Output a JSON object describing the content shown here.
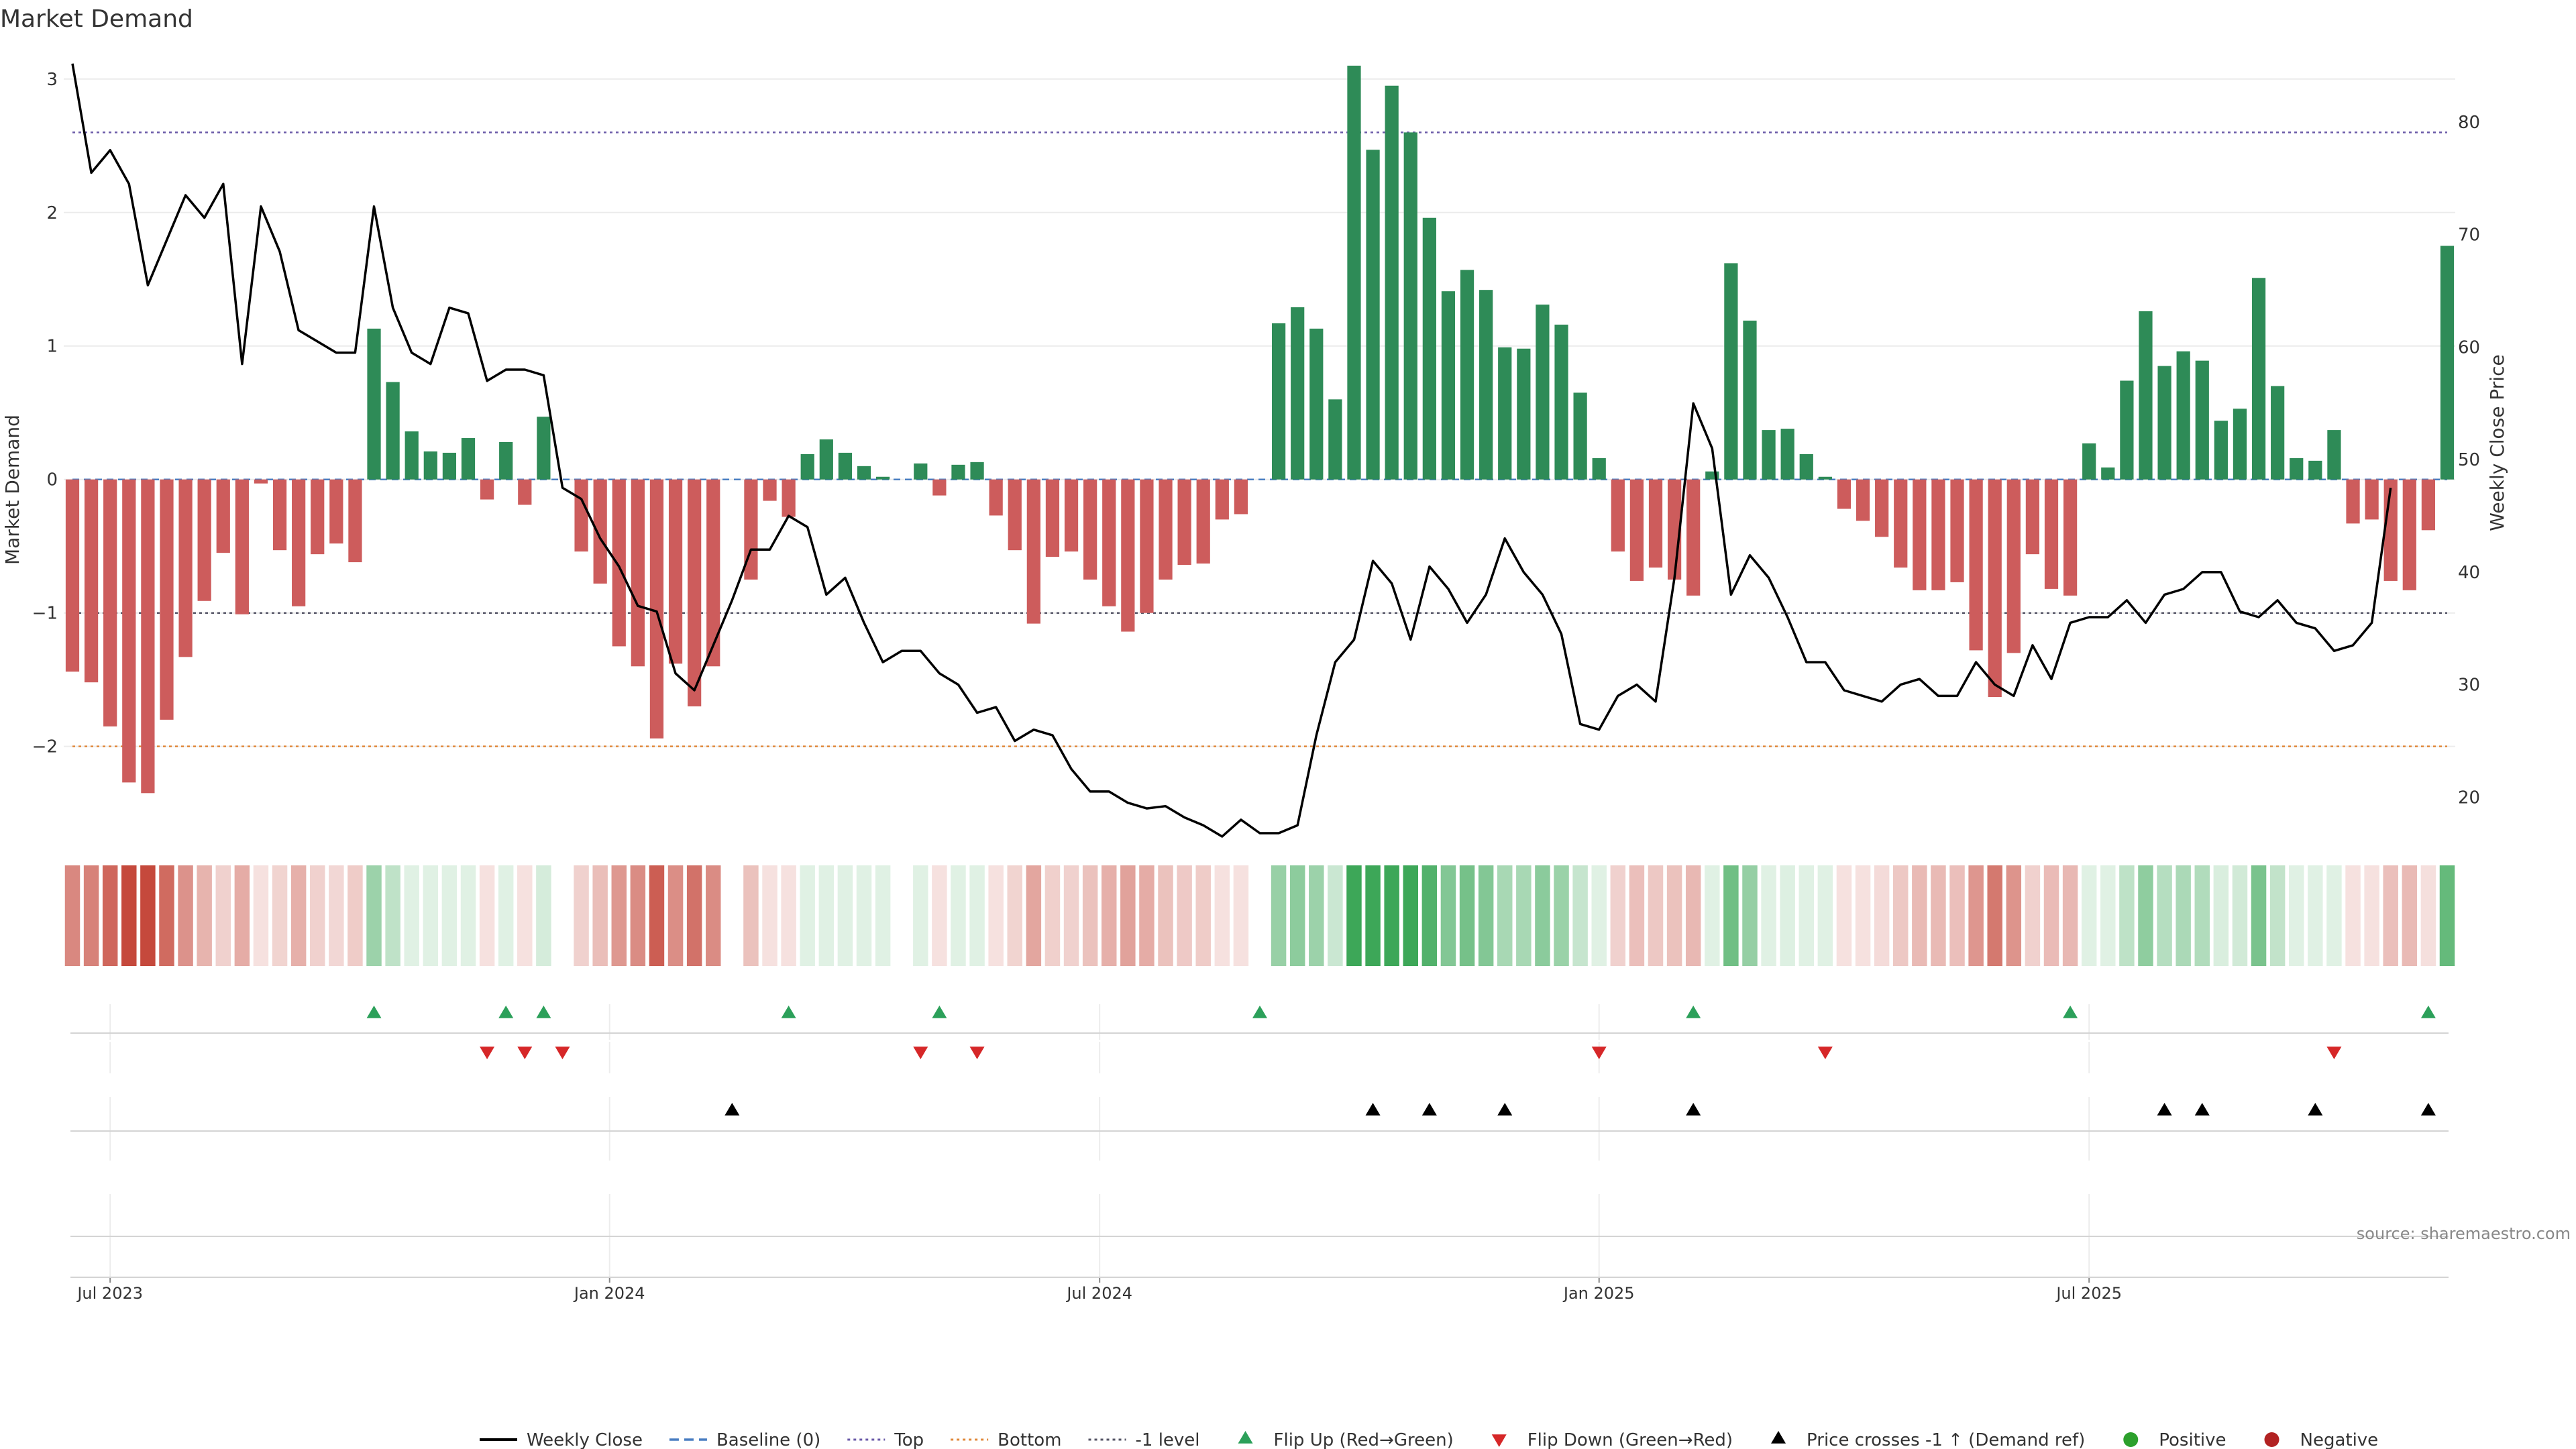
{
  "chart_data": {
    "type": "bar",
    "title": "Market Demand",
    "ylabel": "Market Demand",
    "y2label": "Weekly Close Price",
    "ylim": [
      -2.65,
      3.2
    ],
    "y2lim": [
      16.8,
      86.2
    ],
    "yticks": [
      3,
      2,
      1,
      0,
      -1,
      -2
    ],
    "y2ticks": [
      80,
      70,
      60,
      50,
      40,
      30,
      20
    ],
    "reference_lines": {
      "top": 2.6,
      "bottom": -2.0,
      "minus_one": -1.0,
      "baseline": 0
    },
    "x_ticks": [
      {
        "label": "Jul 2023",
        "week": 2
      },
      {
        "label": "Jan 2024",
        "week": 28.5
      },
      {
        "label": "Jul 2024",
        "week": 54.5
      },
      {
        "label": "Jan 2025",
        "week": 81
      },
      {
        "label": "Jul 2025",
        "week": 107
      }
    ],
    "demand": [
      -1.44,
      -1.52,
      -1.85,
      -2.27,
      -2.35,
      -1.8,
      -1.33,
      -0.91,
      -0.55,
      -1.01,
      -0.03,
      -0.53,
      -0.95,
      -0.56,
      -0.48,
      -0.62,
      1.13,
      0.73,
      0.36,
      0.21,
      0.2,
      0.31,
      -0.15,
      0.28,
      -0.19,
      0.47,
      0,
      -0.54,
      -0.78,
      -1.25,
      -1.4,
      -1.94,
      -1.38,
      -1.7,
      -1.4,
      0,
      -0.75,
      -0.16,
      -0.28,
      0.19,
      0.3,
      0.2,
      0.1,
      0.02,
      0,
      0.12,
      -0.12,
      0.11,
      0.13,
      -0.27,
      -0.53,
      -1.08,
      -0.58,
      -0.54,
      -0.75,
      -0.95,
      -1.14,
      -1.0,
      -0.75,
      -0.64,
      -0.63,
      -0.3,
      -0.26,
      0,
      1.17,
      1.29,
      1.13,
      0.6,
      3.1,
      2.47,
      2.95,
      2.6,
      1.96,
      1.41,
      1.57,
      1.42,
      0.99,
      0.98,
      1.31,
      1.16,
      0.65,
      0.16,
      -0.54,
      -0.76,
      -0.66,
      -0.75,
      -0.87,
      0.06,
      1.62,
      1.19,
      0.37,
      0.38,
      0.19,
      0.02,
      -0.22,
      -0.31,
      -0.43,
      -0.66,
      -0.83,
      -0.83,
      -0.77,
      -1.28,
      -1.63,
      -1.3,
      -0.56,
      -0.82,
      -0.87,
      0.27,
      0.09,
      0.74,
      1.26,
      0.85,
      0.96,
      0.89,
      0.44,
      0.53,
      1.51,
      0.7,
      0.16,
      0.14,
      0.37,
      -0.33,
      -0.3,
      -0.76,
      -0.83,
      -0.38,
      1.75
    ],
    "close": [
      85.2,
      75.5,
      77.5,
      74.5,
      65.5,
      69.5,
      73.5,
      71.5,
      74.5,
      58.5,
      72.5,
      68.5,
      61.5,
      60.5,
      59.5,
      59.5,
      72.5,
      63.5,
      59.5,
      58.5,
      63.5,
      63.0,
      57.0,
      58.0,
      58.0,
      57.5,
      47.5,
      46.5,
      43.0,
      40.5,
      37.0,
      36.5,
      31.0,
      29.5,
      33.5,
      37.5,
      42.0,
      42.0,
      45.0,
      44.0,
      38.0,
      39.5,
      35.5,
      32.0,
      33.0,
      33.0,
      31.0,
      30.0,
      27.5,
      28.0,
      25.0,
      26.0,
      25.5,
      22.5,
      20.5,
      20.5,
      19.5,
      19.0,
      19.2,
      18.2,
      17.5,
      16.5,
      18.0,
      16.8,
      16.8,
      17.5,
      25.5,
      32.0,
      34.0,
      41.0,
      39.0,
      34.0,
      40.5,
      38.5,
      35.5,
      38.0,
      43.0,
      40.0,
      38.0,
      34.5,
      26.5,
      26.0,
      29.0,
      30.0,
      28.5,
      39.5,
      55.0,
      51.0,
      38.0,
      41.5,
      39.5,
      36.0,
      32.0,
      32.0,
      29.5,
      29.0,
      28.5,
      30.0,
      30.5,
      29.0,
      29.0,
      32.0,
      30.0,
      29.0,
      33.5,
      30.5,
      35.5,
      36.0,
      36.0,
      37.5,
      35.5,
      38.0,
      38.5,
      40.0,
      40.0,
      36.5,
      36.0,
      37.5,
      35.5,
      35.0,
      33.0,
      33.5,
      35.5,
      47.5
    ],
    "flip_up_weeks": [
      16,
      23,
      25,
      38,
      46,
      63,
      86,
      106,
      125
    ],
    "flip_down_weeks": [
      22,
      24,
      26,
      45,
      48,
      81,
      93,
      120
    ],
    "price_cross_weeks": [
      35,
      69,
      72,
      76,
      86,
      111,
      113,
      119,
      125
    ],
    "series_legend": [
      {
        "name": "Weekly Close",
        "kind": "line",
        "color": "#000000"
      },
      {
        "name": "Baseline (0)",
        "kind": "dash",
        "color": "#4a7ec2"
      },
      {
        "name": "Top",
        "kind": "dot",
        "color": "#6a5aa8"
      },
      {
        "name": "Bottom",
        "kind": "dot",
        "color": "#e0883a"
      },
      {
        "name": "-1 level",
        "kind": "dot",
        "color": "#555566"
      },
      {
        "name": "Flip Up (Red→Green)",
        "kind": "tri-up",
        "color": "#2ca05a"
      },
      {
        "name": "Flip Down (Green→Red)",
        "kind": "tri-down",
        "color": "#d62728"
      },
      {
        "name": "Price crosses -1 ↑ (Demand ref)",
        "kind": "tri-up",
        "color": "#000000"
      },
      {
        "name": "Positive",
        "kind": "circle",
        "color": "#2ca02c"
      },
      {
        "name": "Negative",
        "kind": "circle",
        "color": "#b22222"
      }
    ],
    "legend_position": "bottom-center",
    "source": "source: sharemaestro.com",
    "colors": {
      "positive_bar": "#2e8b57",
      "negative_bar": "#cd5c5c",
      "price_line": "#000000",
      "heat_green_base": "#2ca04a",
      "heat_red_base": "#c0392b"
    }
  }
}
